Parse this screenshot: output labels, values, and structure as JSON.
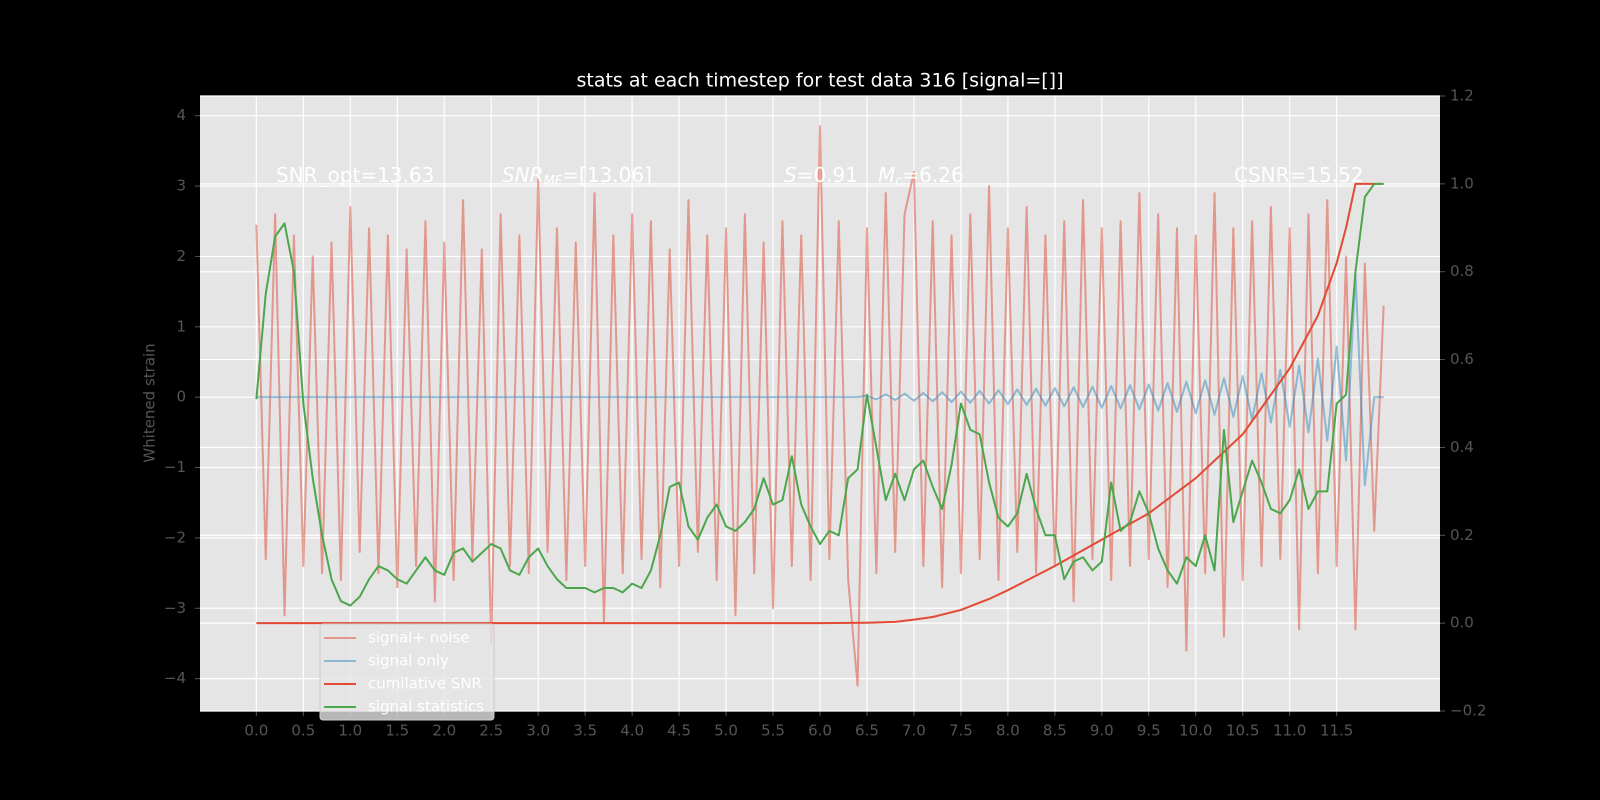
{
  "chart_data": {
    "type": "line",
    "title": "stats at each timestep for test data 316 [signal=[]]",
    "ylabel": "Whitened strain",
    "annotations": [
      [
        {
          "t": "SNR_opt=13.63",
          "style": "plain"
        }
      ],
      [
        {
          "t": "SNR",
          "style": "italic"
        },
        {
          "t": "MF",
          "style": "sub"
        },
        {
          "t": "=[13.06]",
          "style": "plain"
        }
      ],
      [
        {
          "t": "S",
          "style": "italic"
        },
        {
          "t": "=0.91",
          "style": "plain"
        },
        {
          "t": "M",
          "style": "italic"
        },
        {
          "t": "c",
          "style": "sub"
        },
        {
          "t": "=6.26",
          "style": "plain"
        }
      ],
      [
        {
          "t": "CSNR=15.52",
          "style": "plain"
        }
      ]
    ],
    "x": [
      0,
      0.1,
      0.2,
      0.3,
      0.4,
      0.5,
      0.6,
      0.7,
      0.8,
      0.9,
      1,
      1.1,
      1.2,
      1.3,
      1.4,
      1.5,
      1.6,
      1.7,
      1.8,
      1.9,
      2,
      2.1,
      2.2,
      2.3,
      2.4,
      2.5,
      2.6,
      2.7,
      2.8,
      2.9,
      3,
      3.1,
      3.2,
      3.3,
      3.4,
      3.5,
      3.6,
      3.7,
      3.8,
      3.9,
      4,
      4.1,
      4.2,
      4.3,
      4.4,
      4.5,
      4.6,
      4.7,
      4.8,
      4.9,
      5,
      5.1,
      5.2,
      5.3,
      5.4,
      5.5,
      5.6,
      5.7,
      5.8,
      5.9,
      6,
      6.1,
      6.2,
      6.3,
      6.4,
      6.5,
      6.6,
      6.7,
      6.8,
      6.9,
      7,
      7.1,
      7.2,
      7.3,
      7.4,
      7.5,
      7.6,
      7.7,
      7.8,
      7.9,
      8,
      8.1,
      8.2,
      8.3,
      8.4,
      8.5,
      8.6,
      8.7,
      8.8,
      8.9,
      9,
      9.1,
      9.2,
      9.3,
      9.4,
      9.5,
      9.6,
      9.7,
      9.8,
      9.9,
      10,
      10.1,
      10.2,
      10.3,
      10.4,
      10.5,
      10.6,
      10.7,
      10.8,
      10.9,
      11,
      11.1,
      11.2,
      11.3,
      11.4,
      11.5,
      11.6,
      11.7,
      11.8,
      11.9,
      12
    ],
    "series": [
      {
        "name": "signal+ noise",
        "color": "#E24A33",
        "opacity": 0.5,
        "values": [
          2.45,
          -2.3,
          2.6,
          -3.1,
          2.3,
          -2.4,
          2.0,
          -2.5,
          2.2,
          -2.6,
          2.7,
          -2.2,
          2.4,
          -2.5,
          2.3,
          -2.7,
          2.1,
          -2.4,
          2.5,
          -2.9,
          2.2,
          -2.6,
          2.8,
          -2.3,
          2.1,
          -3.5,
          2.6,
          -2.4,
          2.3,
          -2.5,
          3.1,
          -2.2,
          2.4,
          -2.6,
          2.2,
          -2.4,
          2.9,
          -3.2,
          2.3,
          -2.5,
          2.6,
          -2.3,
          2.5,
          -2.7,
          2.1,
          -2.4,
          2.8,
          -2.2,
          2.3,
          -2.6,
          2.4,
          -3.1,
          2.6,
          -2.5,
          2.2,
          -3.0,
          2.5,
          -2.4,
          2.3,
          -2.6,
          3.85,
          -2.3,
          2.5,
          -2.6,
          -4.1,
          2.4,
          -2.5,
          2.9,
          -2.2,
          2.6,
          3.2,
          -2.4,
          2.5,
          -2.7,
          2.3,
          -2.5,
          2.6,
          -2.3,
          3.0,
          -2.6,
          2.4,
          -2.2,
          2.7,
          -2.5,
          2.3,
          -2.4,
          2.5,
          -2.9,
          2.8,
          -2.3,
          2.4,
          -2.6,
          2.5,
          -2.4,
          2.9,
          -2.3,
          2.6,
          -2.7,
          2.4,
          -3.6,
          2.3,
          -2.5,
          2.9,
          -3.4,
          2.4,
          -2.6,
          2.5,
          -2.4,
          2.7,
          -2.3,
          2.4,
          -3.3,
          2.6,
          -2.5,
          2.8,
          -2.4,
          2.0,
          -3.3,
          1.9,
          -1.9,
          1.3
        ]
      },
      {
        "name": "signal only",
        "color": "#348ABD",
        "opacity": 0.5,
        "values": [
          0,
          0,
          0,
          0,
          0,
          0,
          0,
          0,
          0,
          0,
          0,
          0,
          0,
          0,
          0,
          0,
          0,
          0,
          0,
          0,
          0,
          0,
          0,
          0,
          0,
          0,
          0,
          0,
          0,
          0,
          0,
          0,
          0,
          0,
          0,
          0,
          0,
          0,
          0,
          0,
          0,
          0,
          0,
          0,
          0,
          0,
          0,
          0,
          0,
          0,
          0,
          0,
          0,
          0,
          0,
          0,
          0,
          0,
          0,
          0,
          0,
          0,
          0,
          0,
          0,
          0.02,
          -0.03,
          0.04,
          -0.04,
          0.05,
          -0.05,
          0.06,
          -0.06,
          0.07,
          -0.07,
          0.08,
          -0.08,
          0.09,
          -0.09,
          0.1,
          -0.1,
          0.11,
          -0.11,
          0.12,
          -0.12,
          0.13,
          -0.13,
          0.14,
          -0.14,
          0.15,
          -0.15,
          0.16,
          -0.16,
          0.17,
          -0.17,
          0.18,
          -0.19,
          0.2,
          -0.21,
          0.22,
          -0.23,
          0.24,
          -0.25,
          0.27,
          -0.28,
          0.3,
          -0.32,
          0.34,
          -0.36,
          0.39,
          -0.42,
          0.45,
          -0.5,
          0.55,
          -0.62,
          0.72,
          -0.9,
          1.75,
          -1.25,
          0,
          0
        ]
      },
      {
        "name": "cumilative SNR",
        "color": "#E24A33",
        "opacity": 1,
        "axis": "y2",
        "x": [
          0,
          1,
          2,
          3,
          4,
          5,
          6,
          6.5,
          6.8,
          7,
          7.2,
          7.5,
          7.8,
          8,
          8.5,
          9,
          9.5,
          10,
          10.5,
          11,
          11.3,
          11.5,
          11.6,
          11.7,
          12
        ],
        "values": [
          0,
          0,
          0,
          0,
          0,
          0,
          0,
          0.001,
          0.003,
          0.008,
          0.014,
          0.03,
          0.055,
          0.075,
          0.13,
          0.19,
          0.25,
          0.33,
          0.43,
          0.58,
          0.7,
          0.82,
          0.9,
          1.0,
          1.0
        ]
      },
      {
        "name": "signal statistics",
        "color": "#4CA64C",
        "opacity": 1,
        "axis": "y2",
        "values": [
          0.51,
          0.75,
          0.88,
          0.91,
          0.8,
          0.5,
          0.33,
          0.2,
          0.1,
          0.05,
          0.04,
          0.06,
          0.1,
          0.13,
          0.12,
          0.1,
          0.09,
          0.12,
          0.15,
          0.12,
          0.11,
          0.16,
          0.17,
          0.14,
          0.16,
          0.18,
          0.17,
          0.12,
          0.11,
          0.15,
          0.17,
          0.13,
          0.1,
          0.08,
          0.08,
          0.08,
          0.07,
          0.08,
          0.08,
          0.07,
          0.09,
          0.08,
          0.12,
          0.2,
          0.31,
          0.32,
          0.22,
          0.19,
          0.24,
          0.27,
          0.22,
          0.21,
          0.23,
          0.26,
          0.33,
          0.27,
          0.28,
          0.38,
          0.27,
          0.22,
          0.18,
          0.21,
          0.2,
          0.33,
          0.35,
          0.52,
          0.4,
          0.28,
          0.34,
          0.28,
          0.35,
          0.37,
          0.31,
          0.26,
          0.36,
          0.5,
          0.44,
          0.43,
          0.32,
          0.24,
          0.22,
          0.25,
          0.34,
          0.26,
          0.2,
          0.2,
          0.1,
          0.14,
          0.15,
          0.12,
          0.14,
          0.32,
          0.21,
          0.23,
          0.3,
          0.25,
          0.17,
          0.12,
          0.09,
          0.15,
          0.13,
          0.2,
          0.12,
          0.44,
          0.23,
          0.3,
          0.37,
          0.32,
          0.26,
          0.25,
          0.28,
          0.35,
          0.26,
          0.3,
          0.3,
          0.5,
          0.52,
          0.8,
          0.97,
          1.0,
          1.0
        ]
      }
    ],
    "xlim": [
      -0.6,
      12.6
    ],
    "ylim": [
      -4.46,
      4.28
    ],
    "y2lim": [
      -0.2,
      1.2
    ],
    "xticks": [
      {
        "value": 0,
        "label": "0.0"
      },
      0.5,
      {
        "value": 1,
        "label": "1.0"
      },
      1.5,
      {
        "value": 2,
        "label": "2.0"
      },
      2.5,
      {
        "value": 3,
        "label": "3.0"
      },
      3.5,
      {
        "value": 4,
        "label": "4.0"
      },
      4.5,
      {
        "value": 5,
        "label": "5.0"
      },
      5.5,
      {
        "value": 6,
        "label": "6.0"
      },
      6.5,
      {
        "value": 7,
        "label": "7.0"
      },
      7.5,
      {
        "value": 8,
        "label": "8.0"
      },
      8.5,
      {
        "value": 9,
        "label": "9.0"
      },
      9.5,
      {
        "value": 10,
        "label": "10.0"
      },
      10.5,
      {
        "value": 11,
        "label": "11.0"
      },
      11.5
    ],
    "yticks": [
      {
        "value": -4,
        "label": "−4"
      },
      {
        "value": -3,
        "label": "−3"
      },
      {
        "value": -2,
        "label": "−2"
      },
      {
        "value": -1,
        "label": "−1"
      },
      0,
      1,
      2,
      3,
      4
    ],
    "y2ticks": [
      {
        "value": -0.2,
        "label": "−0.2"
      },
      {
        "value": 0,
        "label": "0.0"
      },
      0.2,
      0.4,
      0.6,
      0.8,
      {
        "value": 1,
        "label": "1.0"
      },
      1.2
    ],
    "grid": true,
    "legend": "lower left"
  }
}
